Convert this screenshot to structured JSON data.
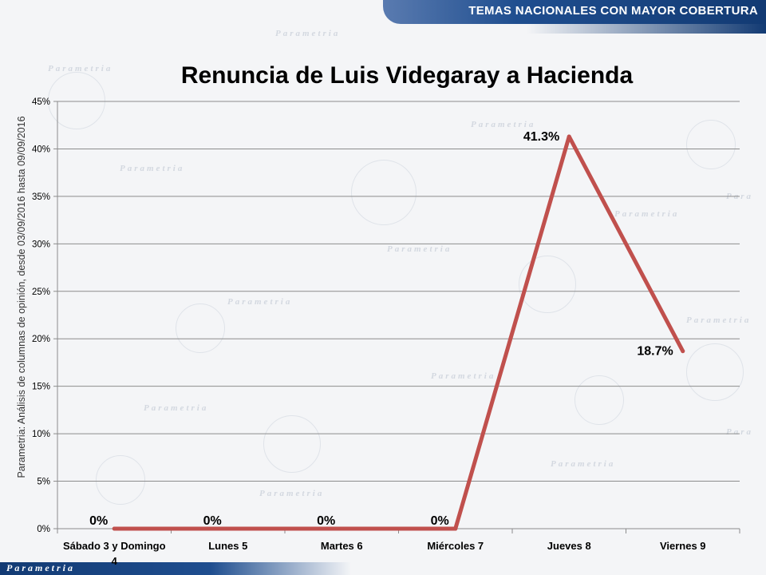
{
  "header": {
    "banner_text": "TEMAS NACIONALES CON MAYOR COBERTURA"
  },
  "footer": {
    "logo_text": "Parametria"
  },
  "source_note": "Parametria: Análisis de columnas de opinión, desde 03/09/2016 hasta 09/09/2016",
  "colors": {
    "line": "#c0504d",
    "banner": "#1f4e8f",
    "grid": "#8c8c8c"
  },
  "chart_data": {
    "type": "line",
    "title": "Renuncia de Luis Videgaray a Hacienda",
    "categories": [
      "Sábado 3 y Domingo 4",
      "Lunes 5",
      "Martes 6",
      "Miércoles 7",
      "Jueves 8",
      "Viernes 9"
    ],
    "category_lines": [
      [
        "Sábado 3 y Domingo",
        "4"
      ],
      [
        "Lunes 5"
      ],
      [
        "Martes 6"
      ],
      [
        "Miércoles 7"
      ],
      [
        "Jueves 8"
      ],
      [
        "Viernes 9"
      ]
    ],
    "values": [
      0,
      0,
      0,
      0,
      41.3,
      18.7
    ],
    "data_labels": [
      "0%",
      "0%",
      "0%",
      "0%",
      "41.3%",
      "18.7%"
    ],
    "ylim": [
      0,
      45
    ],
    "yticks": [
      0,
      5,
      10,
      15,
      20,
      25,
      30,
      35,
      40,
      45
    ],
    "ytick_labels": [
      "0%",
      "5%",
      "10%",
      "15%",
      "20%",
      "25%",
      "30%",
      "35%",
      "40%",
      "45%"
    ],
    "grid": true,
    "xlabel": "",
    "ylabel": ""
  }
}
